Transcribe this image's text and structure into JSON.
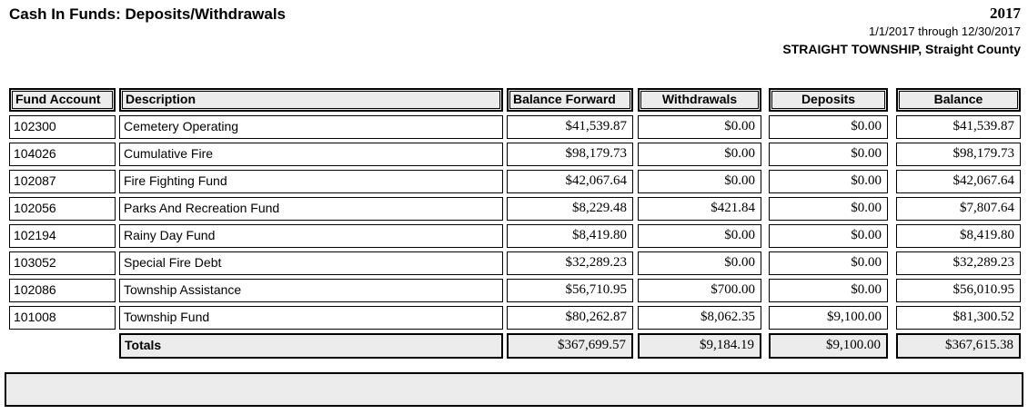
{
  "report": {
    "title": "Cash In Funds: Deposits/Withdrawals",
    "year": "2017",
    "date_range": "1/1/2017 through 12/30/2017",
    "entity": "STRAIGHT TOWNSHIP, Straight County"
  },
  "table": {
    "headers": {
      "fund_account": "Fund Account",
      "description": "Description",
      "balance_forward": "Balance Forward",
      "withdrawals": "Withdrawals",
      "deposits": "Deposits",
      "balance": "Balance"
    },
    "rows": [
      {
        "fund_account": "102300",
        "description": "Cemetery Operating",
        "balance_forward": "$41,539.87",
        "withdrawals": "$0.00",
        "deposits": "$0.00",
        "balance": "$41,539.87"
      },
      {
        "fund_account": "104026",
        "description": "Cumulative Fire",
        "balance_forward": "$98,179.73",
        "withdrawals": "$0.00",
        "deposits": "$0.00",
        "balance": "$98,179.73"
      },
      {
        "fund_account": "102087",
        "description": "Fire Fighting Fund",
        "balance_forward": "$42,067.64",
        "withdrawals": "$0.00",
        "deposits": "$0.00",
        "balance": "$42,067.64"
      },
      {
        "fund_account": "102056",
        "description": "Parks And Recreation Fund",
        "balance_forward": "$8,229.48",
        "withdrawals": "$421.84",
        "deposits": "$0.00",
        "balance": "$7,807.64"
      },
      {
        "fund_account": "102194",
        "description": "Rainy Day Fund",
        "balance_forward": "$8,419.80",
        "withdrawals": "$0.00",
        "deposits": "$0.00",
        "balance": "$8,419.80"
      },
      {
        "fund_account": "103052",
        "description": "Special Fire Debt",
        "balance_forward": "$32,289.23",
        "withdrawals": "$0.00",
        "deposits": "$0.00",
        "balance": "$32,289.23"
      },
      {
        "fund_account": "102086",
        "description": "Township Assistance",
        "balance_forward": "$56,710.95",
        "withdrawals": "$700.00",
        "deposits": "$0.00",
        "balance": "$56,010.95"
      },
      {
        "fund_account": "101008",
        "description": "Township Fund",
        "balance_forward": "$80,262.87",
        "withdrawals": "$8,062.35",
        "deposits": "$9,100.00",
        "balance": "$81,300.52"
      }
    ],
    "totals": {
      "label": "Totals",
      "balance_forward": "$367,699.57",
      "withdrawals": "$9,184.19",
      "deposits": "$9,100.00",
      "balance": "$367,615.38"
    }
  }
}
